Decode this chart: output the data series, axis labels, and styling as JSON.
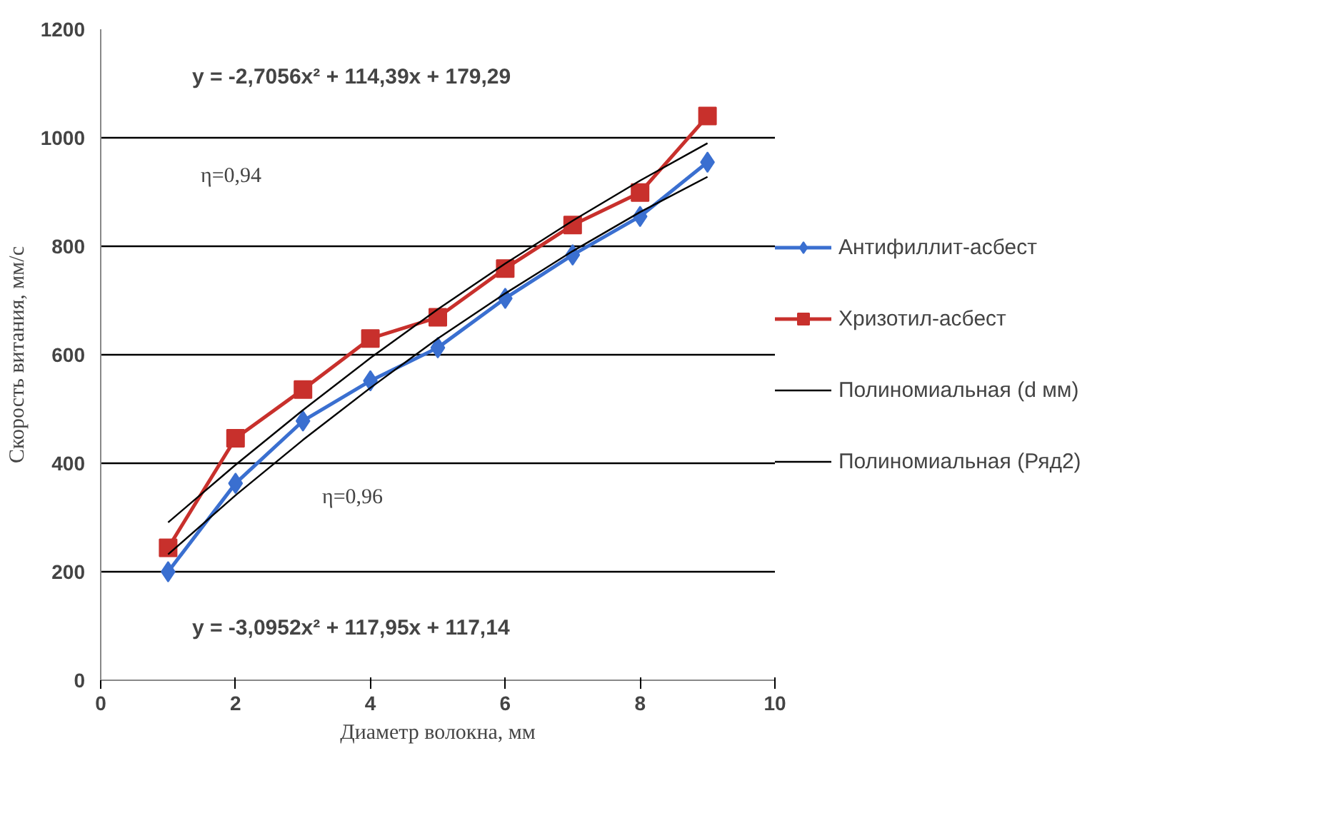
{
  "chart_data": {
    "type": "line",
    "xlabel": "Диаметр волокна, мм",
    "ylabel": "Скорость витания, мм/с",
    "x": [
      1,
      2,
      3,
      4,
      5,
      6,
      7,
      8,
      9
    ],
    "series": [
      {
        "name": "Антифиллит-асбест",
        "color": "#3a6fd0",
        "marker": "diamond",
        "values": [
          200,
          363,
          478,
          552,
          613,
          704,
          784,
          855,
          955
        ]
      },
      {
        "name": "Хризотил-асбест",
        "color": "#c8302c",
        "marker": "square",
        "values": [
          244,
          446,
          536,
          630,
          669,
          759,
          839,
          899,
          1040
        ]
      },
      {
        "name": "Полиномиальная (d мм)",
        "color": "#000000",
        "marker": "none",
        "values": [
          232,
          341,
          443,
          539,
          630,
          713,
          791,
          863,
          928
        ]
      },
      {
        "name": "Полиномиальная (Ряд2)",
        "color": "#000000",
        "marker": "none",
        "values": [
          291,
          397,
          498,
          594,
          684,
          768,
          847,
          921,
          990
        ]
      }
    ],
    "xlim": [
      0,
      10
    ],
    "xticks": [
      0,
      2,
      4,
      6,
      8,
      10
    ],
    "ylim": [
      0,
      1200
    ],
    "yticks": [
      0,
      200,
      400,
      600,
      800,
      1000,
      1200
    ],
    "grid": "y",
    "legend": "right",
    "annotations": [
      "y = -2,7056x² + 114,39x + 179,29",
      "η=0,94",
      "η=0,96",
      "y = -3,0952x² + 117,95x + 117,14"
    ]
  }
}
